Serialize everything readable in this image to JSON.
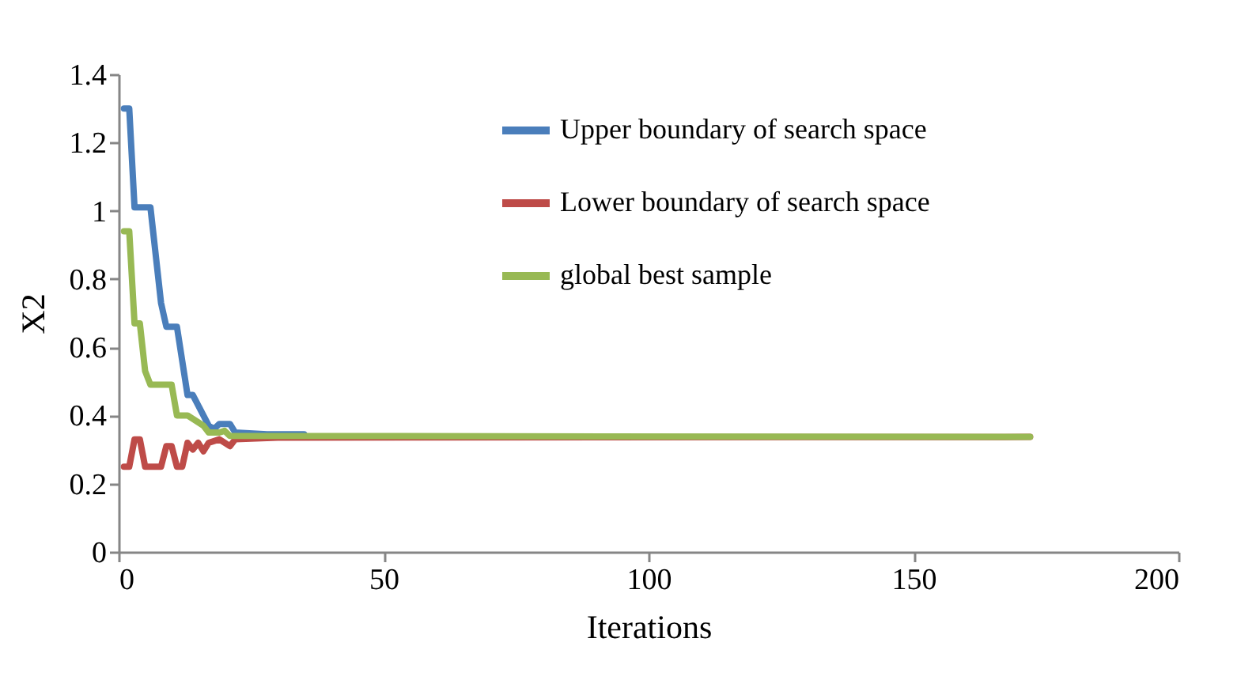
{
  "chart_data": {
    "type": "line",
    "xlabel": "Iterations",
    "ylabel": "X2",
    "xlim": [
      0,
      200
    ],
    "xticks": [
      0,
      50,
      100,
      150,
      200
    ],
    "ylim": [
      0,
      1.4
    ],
    "yticks": [
      0,
      0.2,
      0.4,
      0.6,
      0.8,
      1,
      1.2,
      1.4
    ],
    "grid": false,
    "legend": "top right",
    "marker": "none",
    "line_style": "solid",
    "series": [
      {
        "name": "Upper boundary of search space",
        "color": "#4a7ebb",
        "x": [
          1,
          2,
          3,
          6,
          8,
          9,
          11,
          13,
          14,
          17,
          18,
          19,
          21,
          22,
          28,
          35
        ],
        "values": [
          1.3,
          1.3,
          1.01,
          1.01,
          0.73,
          0.66,
          0.66,
          0.46,
          0.46,
          0.37,
          0.36,
          0.375,
          0.375,
          0.35,
          0.345,
          0.345
        ]
      },
      {
        "name": "Lower boundary of search space",
        "color": "#be4b48",
        "x": [
          1,
          2,
          3,
          4,
          5,
          8,
          9,
          10,
          11,
          12,
          13,
          14,
          15,
          16,
          17,
          19,
          20,
          21,
          22,
          30,
          172
        ],
        "values": [
          0.25,
          0.25,
          0.33,
          0.33,
          0.25,
          0.25,
          0.31,
          0.31,
          0.25,
          0.25,
          0.32,
          0.3,
          0.32,
          0.295,
          0.32,
          0.33,
          0.32,
          0.31,
          0.33,
          0.335,
          0.337
        ]
      },
      {
        "name": "global best sample",
        "color": "#98b954",
        "x": [
          1,
          2,
          3,
          4,
          5,
          6,
          10,
          11,
          13,
          16,
          17,
          19,
          20,
          21,
          172
        ],
        "values": [
          0.94,
          0.94,
          0.67,
          0.67,
          0.53,
          0.49,
          0.49,
          0.4,
          0.4,
          0.37,
          0.35,
          0.35,
          0.355,
          0.34,
          0.337
        ]
      }
    ]
  }
}
